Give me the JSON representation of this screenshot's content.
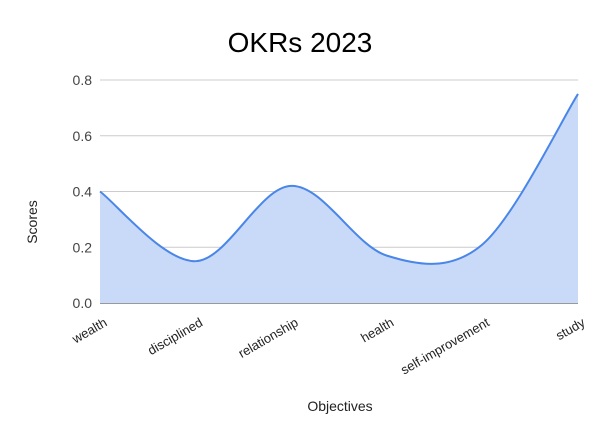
{
  "chart_data": {
    "type": "area",
    "title": "OKRs 2023",
    "x_label": "Objectives",
    "y_label": "Scores",
    "categories": [
      "wealth",
      "disciplined",
      "relationship",
      "health",
      "self-improvement",
      "study"
    ],
    "series": [
      {
        "name": "Scores",
        "color": "#4a86e8",
        "fill": "#c9daf8",
        "values": [
          0.4,
          0.15,
          0.42,
          0.17,
          0.21,
          0.75
        ]
      }
    ],
    "ylim": [
      0,
      0.8
    ],
    "yticks": [
      {
        "value": 0,
        "label": "0.0"
      },
      0.2,
      0.4,
      0.6,
      0.8
    ],
    "grid": true,
    "smooth": true
  }
}
